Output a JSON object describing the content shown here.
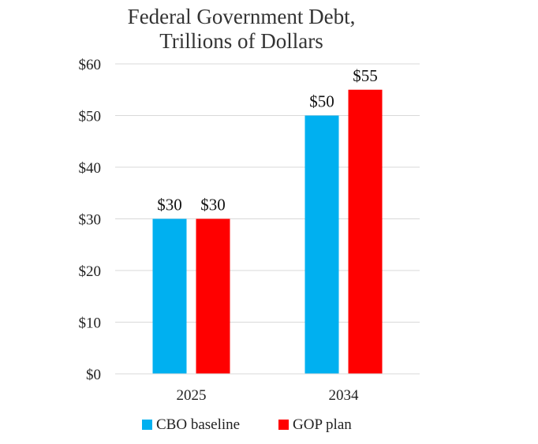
{
  "chart_data": {
    "type": "bar",
    "title": [
      "Federal Government Debt,",
      "Trillions of Dollars"
    ],
    "categories": [
      "2025",
      "2034"
    ],
    "series": [
      {
        "name": "CBO baseline",
        "color": "#00B0F0",
        "values": [
          30,
          50
        ],
        "labels": [
          "$30",
          "$50"
        ]
      },
      {
        "name": "GOP plan",
        "color": "#FF0000",
        "values": [
          30,
          55
        ],
        "labels": [
          "$30",
          "$55"
        ]
      }
    ],
    "ylim": [
      0,
      60
    ],
    "yticks": [
      0,
      10,
      20,
      30,
      40,
      50,
      60
    ],
    "ytick_labels": [
      "$0",
      "$10",
      "$20",
      "$30",
      "$40",
      "$50",
      "$60"
    ],
    "grid": true,
    "legend_position": "bottom"
  }
}
